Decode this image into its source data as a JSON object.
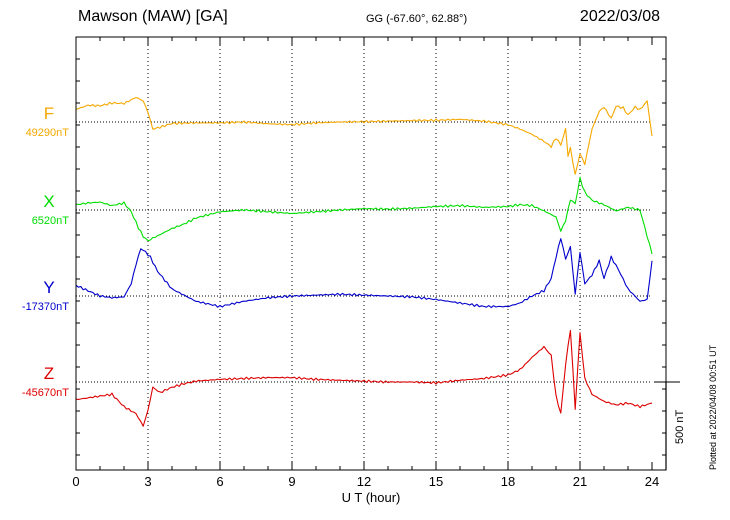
{
  "header": {
    "station": "Mawson (MAW)  [GA]",
    "coords": "GG (-67.60°,  62.88°)",
    "date": "2022/03/08"
  },
  "colors": {
    "F": "#f5a800",
    "X": "#00dd00",
    "Y": "#0000cc",
    "Z": "#dd0000"
  },
  "chart_data": {
    "type": "line",
    "title": "Mawson (MAW)  [GA]",
    "xlabel": "U T (hour)",
    "xlim": [
      0,
      24
    ],
    "xticks": [
      0,
      3,
      6,
      9,
      12,
      15,
      18,
      21,
      24
    ],
    "tick_labels": [
      "0",
      "3",
      "6",
      "9",
      "12",
      "15",
      "18",
      "21",
      "24"
    ],
    "grid": true,
    "scale_bar": "500 nT",
    "scale_bar_nT": 500,
    "series": [
      {
        "name": "F",
        "baseline_label": "49290nT",
        "baseline_nT": 49290,
        "color": "#f5a800",
        "x": [
          0,
          0.5,
          1,
          1.5,
          2,
          2.5,
          2.8,
          3,
          3.2,
          3.5,
          4,
          5,
          6,
          7,
          8,
          9,
          10,
          11,
          12,
          13,
          14,
          15,
          16,
          17,
          18,
          18.5,
          19,
          19.5,
          19.8,
          20,
          20.2,
          20.4,
          20.5,
          20.6,
          20.8,
          21,
          21.2,
          21.5,
          21.8,
          22,
          22.3,
          22.5,
          22.8,
          23,
          23.3,
          23.5,
          23.8,
          24
        ],
        "dev": [
          72,
          95,
          92,
          108,
          105,
          140,
          120,
          55,
          -40,
          -30,
          -8,
          -5,
          -5,
          0,
          -10,
          -15,
          -5,
          0,
          2,
          5,
          8,
          10,
          15,
          5,
          -15,
          -40,
          -70,
          -110,
          -140,
          -90,
          -130,
          -40,
          -190,
          -150,
          -300,
          -180,
          -240,
          -40,
          60,
          85,
          20,
          90,
          80,
          40,
          85,
          70,
          120,
          -80
        ]
      },
      {
        "name": "X",
        "baseline_label": "6520nT",
        "baseline_nT": 6520,
        "color": "#00dd00",
        "x": [
          0,
          0.5,
          1,
          1.5,
          2,
          2.3,
          2.6,
          2.8,
          3,
          3.2,
          3.5,
          4,
          4.5,
          5,
          6,
          7,
          8,
          9,
          10,
          11,
          12,
          13,
          14,
          15,
          16,
          17,
          18,
          18.5,
          19,
          19.5,
          20,
          20.2,
          20.4,
          20.6,
          20.8,
          21,
          21.2,
          21.5,
          22,
          22.5,
          23,
          23.5,
          24
        ],
        "dev": [
          30,
          40,
          45,
          25,
          40,
          -10,
          -100,
          -150,
          -175,
          -160,
          -140,
          -105,
          -80,
          -45,
          -10,
          0,
          -10,
          -20,
          -10,
          0,
          8,
          5,
          10,
          20,
          25,
          15,
          20,
          30,
          25,
          -5,
          -40,
          -120,
          -60,
          60,
          35,
          180,
          100,
          55,
          30,
          -5,
          15,
          0,
          -250
        ]
      },
      {
        "name": "Y",
        "baseline_label": "-17370nT",
        "baseline_nT": -17370,
        "color": "#0000cc",
        "x": [
          0,
          0.5,
          1,
          1.5,
          2,
          2.3,
          2.5,
          2.7,
          2.9,
          3.1,
          3.4,
          4,
          5,
          6,
          7,
          8,
          9,
          10,
          11,
          12,
          13,
          14,
          15,
          16,
          17,
          18,
          18.5,
          19,
          19.5,
          19.8,
          20,
          20.2,
          20.4,
          20.6,
          20.8,
          21,
          21.2,
          21.5,
          21.8,
          22,
          22.3,
          22.6,
          23,
          23.5,
          23.8,
          24
        ],
        "dev": [
          60,
          30,
          0,
          -10,
          -5,
          70,
          180,
          270,
          250,
          220,
          140,
          40,
          -30,
          -60,
          -30,
          -10,
          0,
          5,
          10,
          5,
          0,
          -5,
          -20,
          -40,
          -60,
          -60,
          -40,
          0,
          30,
          100,
          220,
          330,
          210,
          280,
          10,
          250,
          70,
          120,
          200,
          100,
          220,
          150,
          40,
          -30,
          -20,
          200
        ]
      },
      {
        "name": "Z",
        "baseline_label": "-45670nT",
        "baseline_nT": -45670,
        "color": "#dd0000",
        "x": [
          0,
          0.5,
          1,
          1.5,
          2,
          2.5,
          2.8,
          3,
          3.2,
          3.5,
          4,
          4.5,
          5,
          6,
          7,
          8,
          9,
          10,
          11,
          12,
          13,
          14,
          15,
          16,
          17,
          18,
          18.5,
          19,
          19.5,
          19.8,
          20,
          20.2,
          20.4,
          20.6,
          20.8,
          21,
          21.2,
          21.5,
          22,
          22.5,
          23,
          23.5,
          24
        ],
        "dev": [
          -100,
          -90,
          -80,
          -70,
          -140,
          -180,
          -250,
          -160,
          -30,
          -60,
          -30,
          -10,
          5,
          15,
          20,
          25,
          25,
          15,
          10,
          5,
          0,
          0,
          -5,
          10,
          20,
          40,
          70,
          140,
          200,
          150,
          -80,
          -180,
          100,
          300,
          -150,
          280,
          20,
          -70,
          -110,
          -130,
          -120,
          -140,
          -120
        ]
      }
    ]
  },
  "footnote": "Plotted at 2022/04/08 00:51 UT"
}
